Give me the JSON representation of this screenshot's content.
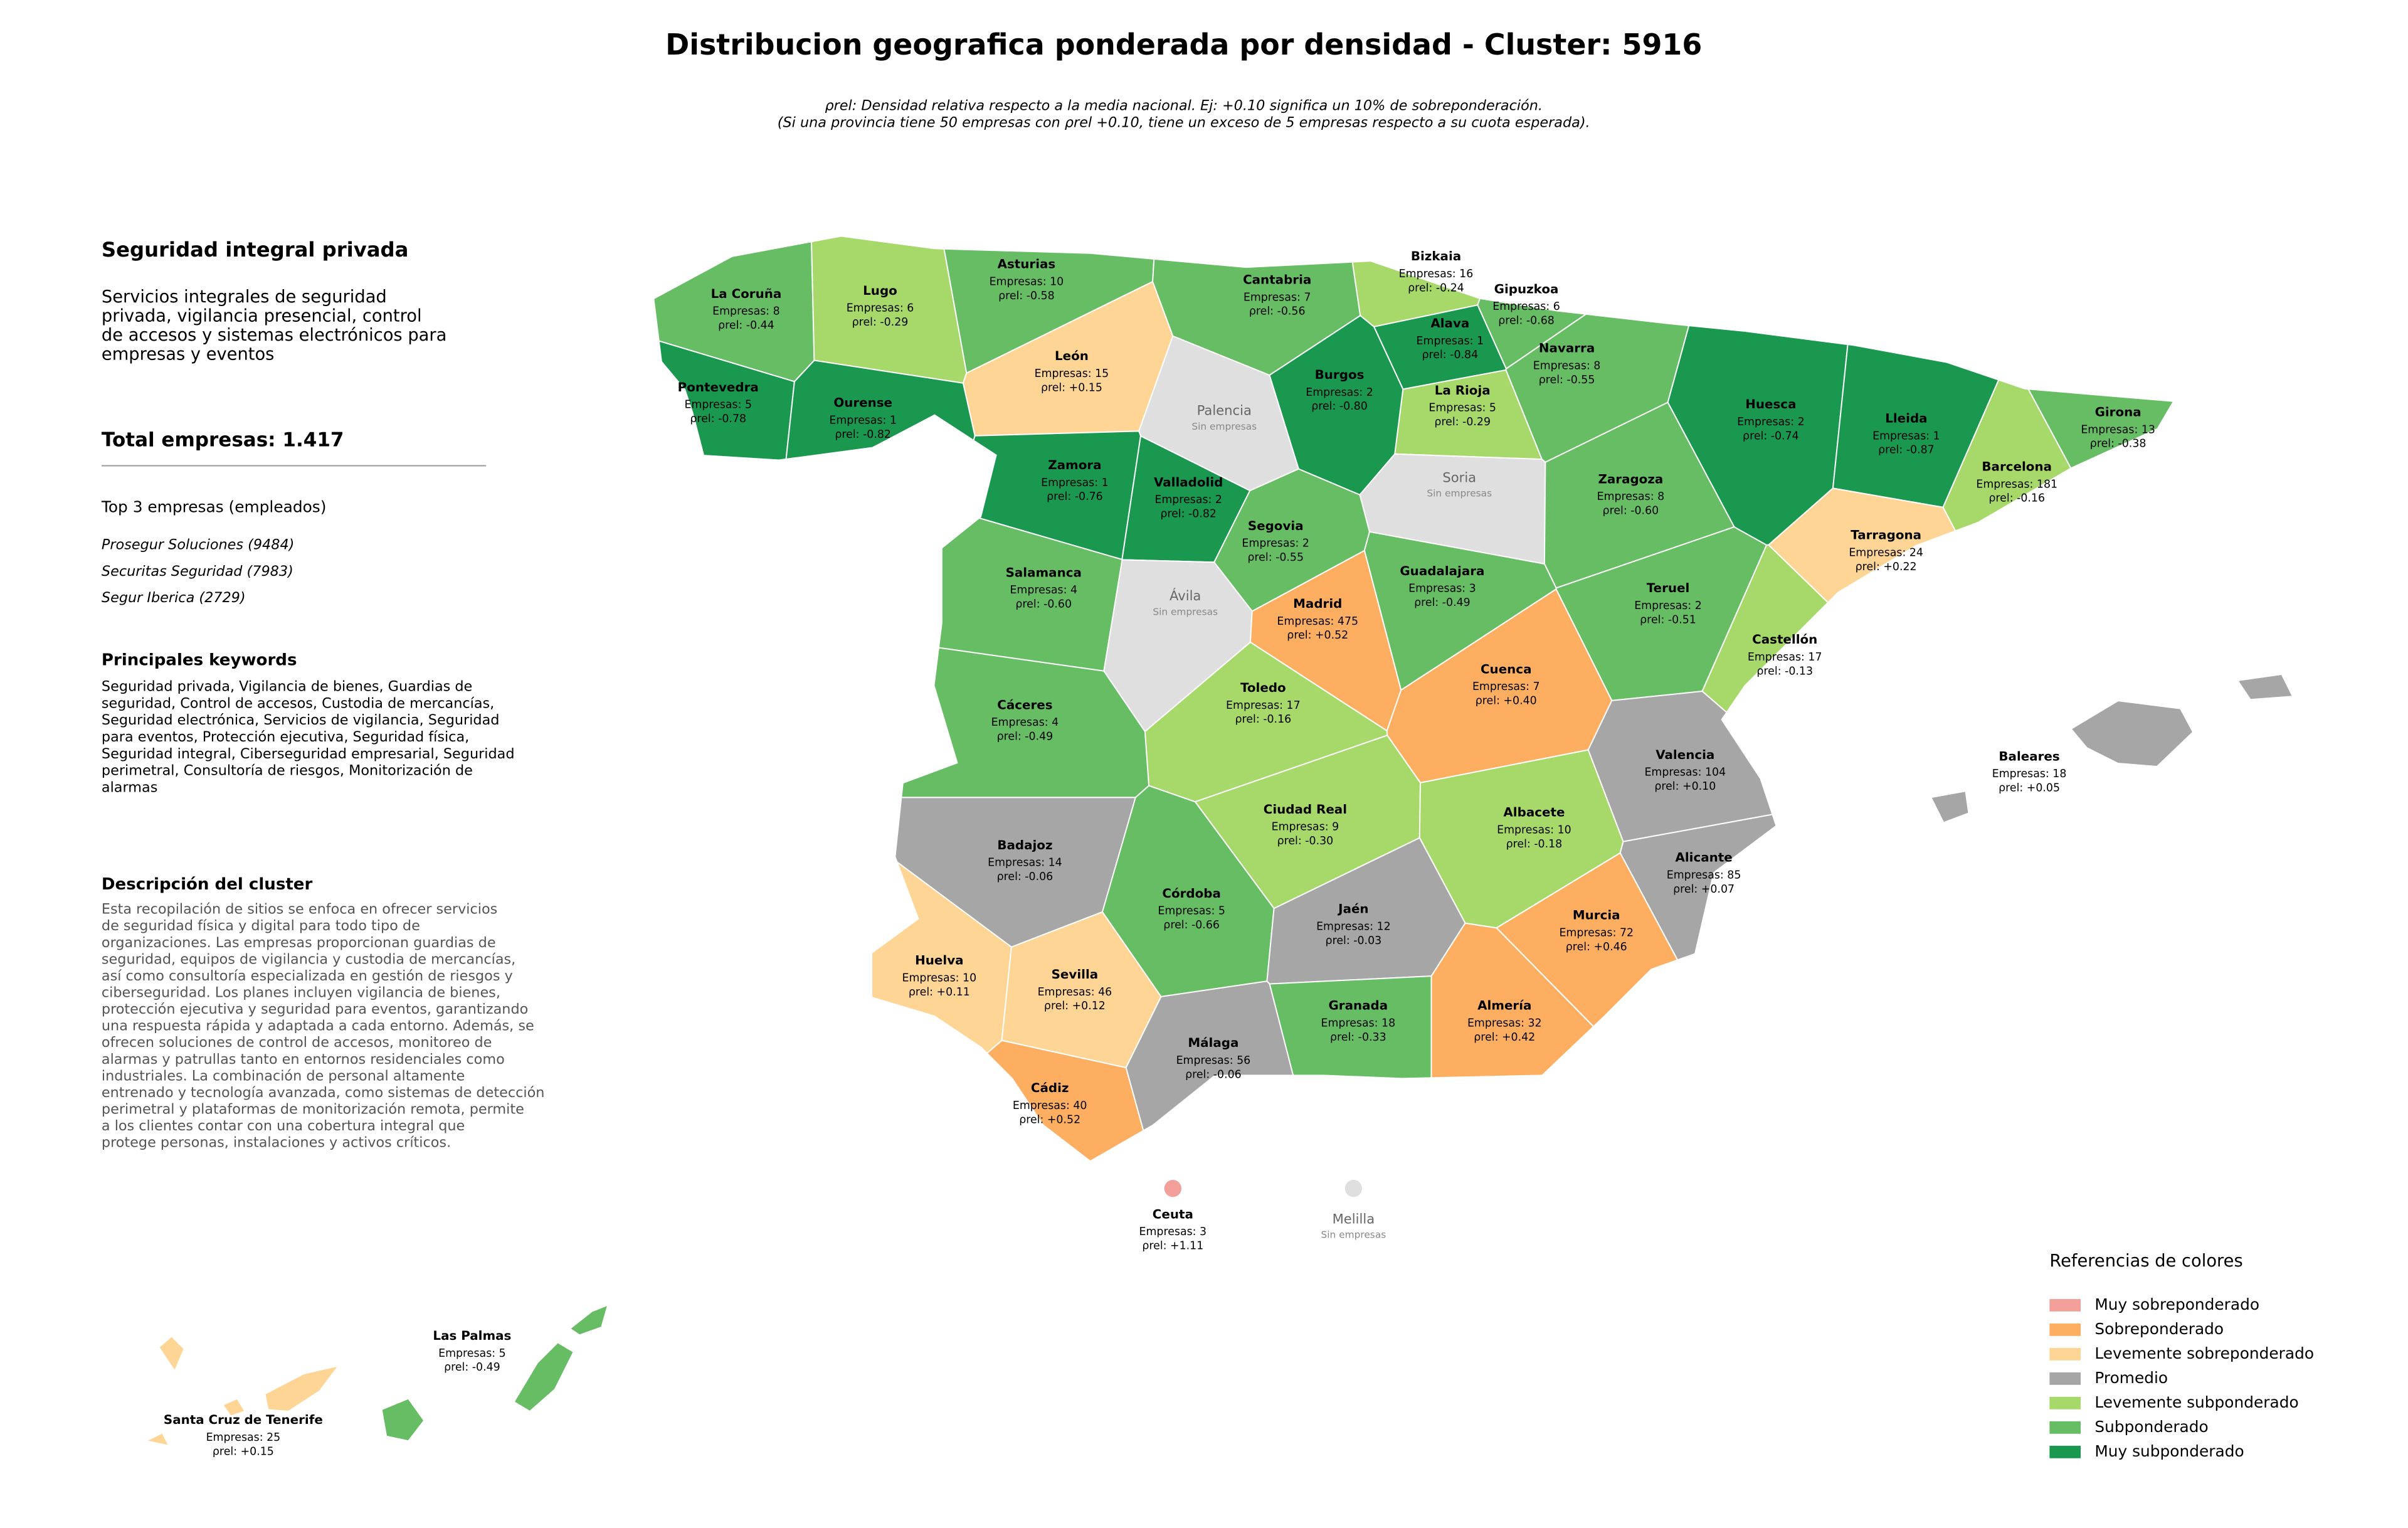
{
  "header": {
    "title": "Distribucion geografica ponderada por densidad - Cluster: 5916",
    "subtitle": [
      "ρrel: Densidad relativa respecto a la media nacional. Ej: +0.10 significa un 10% de sobreponderación.",
      "(Si una provincia tiene 50 empresas con ρrel +0.10, tiene un exceso de 5 empresas respecto a su cuota esperada)."
    ]
  },
  "panel": {
    "name": "Seguridad integral privada",
    "summary": [
      "Servicios integrales de seguridad",
      "privada, vigilancia presencial, control",
      "de accesos y sistemas electrónicos para",
      "empresas y eventos"
    ],
    "total": "Total empresas: 1.417",
    "top_title": "Top 3 empresas (empleados)",
    "top": [
      "Prosegur Soluciones (9484)",
      "Securitas Seguridad (7983)",
      "Segur Iberica (2729)"
    ],
    "keywords_title": "Principales keywords",
    "keywords": [
      "Seguridad privada, Vigilancia de bienes, Guardias de",
      "seguridad, Control de accesos, Custodia de mercancías,",
      "Seguridad electrónica, Servicios de vigilancia, Seguridad",
      "para eventos, Protección ejecutiva, Seguridad física,",
      "Seguridad integral, Ciberseguridad empresarial, Seguridad",
      "perimetral, Consultoría de riesgos, Monitorización de",
      "alarmas"
    ],
    "description_title": "Descripción del cluster",
    "description": [
      "Esta recopilación de sitios se enfoca en ofrecer servicios",
      "de seguridad física y digital para todo tipo de",
      "organizaciones. Las empresas proporcionan guardias de",
      "seguridad, equipos de vigilancia y custodia de mercancías,",
      "así como consultoría especializada en gestión de riesgos y",
      "ciberseguridad. Los planes incluyen vigilancia de bienes,",
      "protección ejecutiva y seguridad para eventos, garantizando",
      "una respuesta rápida y adaptada a cada entorno. Además, se",
      "ofrecen soluciones de control de accesos, monitoreo de",
      "alarmas y patrullas tanto en entornos residenciales como",
      "industriales. La combinación de personal altamente",
      "entrenado y tecnología avanzada, como sistemas de detección",
      "perimetral y plataformas de monitorización remota, permite",
      "a los clientes contar con una cobertura integral que",
      "protege personas, instalaciones y activos críticos."
    ]
  },
  "legend": {
    "title": "Referencias de colores",
    "items": [
      {
        "label": "Muy sobreponderado",
        "color": "#f4a09a"
      },
      {
        "label": "Sobreponderado",
        "color": "#fdae61"
      },
      {
        "label": "Levemente sobreponderado",
        "color": "#fed595"
      },
      {
        "label": "Promedio",
        "color": "#a6a6a6"
      },
      {
        "label": "Levemente subponderado",
        "color": "#a6d96a"
      },
      {
        "label": "Subponderado",
        "color": "#66bd63"
      },
      {
        "label": "Muy subponderado",
        "color": "#1a9850"
      }
    ],
    "empty_color": "#dfdfdf"
  },
  "provinces": [
    {
      "name": "La Coruña",
      "count": "Empresas: 8",
      "rho": "ρrel: -0.44",
      "category": 5
    },
    {
      "name": "Lugo",
      "count": "Empresas: 6",
      "rho": "ρrel: -0.29",
      "category": 4
    },
    {
      "name": "Asturias",
      "count": "Empresas: 10",
      "rho": "ρrel: -0.58",
      "category": 5
    },
    {
      "name": "Cantabria",
      "count": "Empresas: 7",
      "rho": "ρrel: -0.56",
      "category": 5
    },
    {
      "name": "Bizkaia",
      "count": "Empresas: 16",
      "rho": "ρrel: -0.24",
      "category": 4
    },
    {
      "name": "Gipuzkoa",
      "count": "Empresas: 6",
      "rho": "ρrel: -0.68",
      "category": 5
    },
    {
      "name": "Alava",
      "count": "Empresas: 1",
      "rho": "ρrel: -0.84",
      "category": 6
    },
    {
      "name": "Navarra",
      "count": "Empresas: 8",
      "rho": "ρrel: -0.55",
      "category": 5
    },
    {
      "name": "La Rioja",
      "count": "Empresas: 5",
      "rho": "ρrel: -0.29",
      "category": 4
    },
    {
      "name": "Burgos",
      "count": "Empresas: 2",
      "rho": "ρrel: -0.80",
      "category": 6
    },
    {
      "name": "León",
      "count": "Empresas: 15",
      "rho": "ρrel: +0.15",
      "category": 2
    },
    {
      "name": "Palencia",
      "count": "Sin empresas"
    },
    {
      "name": "Pontevedra",
      "count": "Empresas: 5",
      "rho": "ρrel: -0.78",
      "category": 6
    },
    {
      "name": "Ourense",
      "count": "Empresas: 1",
      "rho": "ρrel: -0.82",
      "category": 6
    },
    {
      "name": "Zamora",
      "count": "Empresas: 1",
      "rho": "ρrel: -0.76",
      "category": 6
    },
    {
      "name": "Valladolid",
      "count": "Empresas: 2",
      "rho": "ρrel: -0.82",
      "category": 6
    },
    {
      "name": "Soria",
      "count": "Sin empresas"
    },
    {
      "name": "Huesca",
      "count": "Empresas: 2",
      "rho": "ρrel: -0.74",
      "category": 6
    },
    {
      "name": "Lleida",
      "count": "Empresas: 1",
      "rho": "ρrel: -0.87",
      "category": 6
    },
    {
      "name": "Girona",
      "count": "Empresas: 13",
      "rho": "ρrel: -0.38",
      "category": 5
    },
    {
      "name": "Barcelona",
      "count": "Empresas: 181",
      "rho": "ρrel: -0.16",
      "category": 4
    },
    {
      "name": "Zaragoza",
      "count": "Empresas: 8",
      "rho": "ρrel: -0.60",
      "category": 5
    },
    {
      "name": "Tarragona",
      "count": "Empresas: 24",
      "rho": "ρrel: +0.22",
      "category": 2
    },
    {
      "name": "Segovia",
      "count": "Empresas: 2",
      "rho": "ρrel: -0.55",
      "category": 5
    },
    {
      "name": "Salamanca",
      "count": "Empresas: 4",
      "rho": "ρrel: -0.60",
      "category": 5
    },
    {
      "name": "Guadalajara",
      "count": "Empresas: 3",
      "rho": "ρrel: -0.49",
      "category": 5
    },
    {
      "name": "Ávila",
      "count": "Sin empresas"
    },
    {
      "name": "Madrid",
      "count": "Empresas: 475",
      "rho": "ρrel: +0.52",
      "category": 1
    },
    {
      "name": "Teruel",
      "count": "Empresas: 2",
      "rho": "ρrel: -0.51",
      "category": 5
    },
    {
      "name": "Castellón",
      "count": "Empresas: 17",
      "rho": "ρrel: -0.13",
      "category": 4
    },
    {
      "name": "Cuenca",
      "count": "Empresas: 7",
      "rho": "ρrel: +0.40",
      "category": 1
    },
    {
      "name": "Toledo",
      "count": "Empresas: 17",
      "rho": "ρrel: -0.16",
      "category": 4
    },
    {
      "name": "Cáceres",
      "count": "Empresas: 4",
      "rho": "ρrel: -0.49",
      "category": 5
    },
    {
      "name": "Valencia",
      "count": "Empresas: 104",
      "rho": "ρrel: +0.10",
      "category": 3
    },
    {
      "name": "Ciudad Real",
      "count": "Empresas: 9",
      "rho": "ρrel: -0.30",
      "category": 4
    },
    {
      "name": "Albacete",
      "count": "Empresas: 10",
      "rho": "ρrel: -0.18",
      "category": 4
    },
    {
      "name": "Badajoz",
      "count": "Empresas: 14",
      "rho": "ρrel: -0.06",
      "category": 3
    },
    {
      "name": "Alicante",
      "count": "Empresas: 85",
      "rho": "ρrel: +0.07",
      "category": 3
    },
    {
      "name": "Córdoba",
      "count": "Empresas: 5",
      "rho": "ρrel: -0.66",
      "category": 5
    },
    {
      "name": "Jaén",
      "count": "Empresas: 12",
      "rho": "ρrel: -0.03",
      "category": 3
    },
    {
      "name": "Murcia",
      "count": "Empresas: 72",
      "rho": "ρrel: +0.46",
      "category": 1
    },
    {
      "name": "Huelva",
      "count": "Empresas: 10",
      "rho": "ρrel: +0.11",
      "category": 2
    },
    {
      "name": "Sevilla",
      "count": "Empresas: 46",
      "rho": "ρrel: +0.12",
      "category": 2
    },
    {
      "name": "Granada",
      "count": "Empresas: 18",
      "rho": "ρrel: -0.33",
      "category": 5
    },
    {
      "name": "Almería",
      "count": "Empresas: 32",
      "rho": "ρrel: +0.42",
      "category": 1
    },
    {
      "name": "Málaga",
      "count": "Empresas: 56",
      "rho": "ρrel: -0.06",
      "category": 3
    },
    {
      "name": "Cádiz",
      "count": "Empresas: 40",
      "rho": "ρrel: +0.52",
      "category": 1
    },
    {
      "name": "Baleares",
      "count": "Empresas: 18",
      "rho": "ρrel: +0.05",
      "category": 3
    },
    {
      "name": "Ceuta",
      "count": "Empresas: 3",
      "rho": "ρrel: +1.11",
      "category": 0
    },
    {
      "name": "Melilla",
      "count": "Sin empresas"
    },
    {
      "name": "Las Palmas",
      "count": "Empresas: 5",
      "rho": "ρrel: -0.49",
      "category": 5
    },
    {
      "name": "Santa Cruz de Tenerife",
      "count": "Empresas: 25",
      "rho": "ρrel: +0.15",
      "category": 2
    }
  ]
}
